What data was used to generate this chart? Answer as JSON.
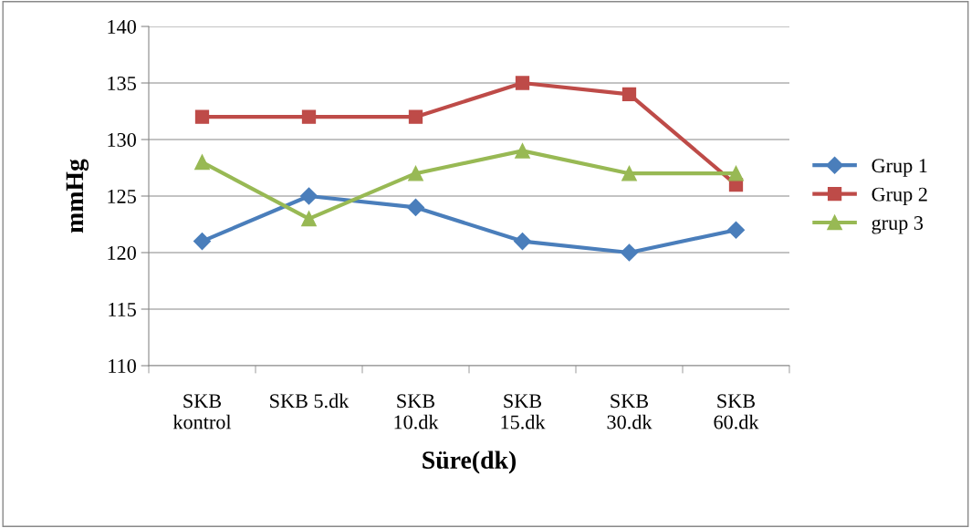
{
  "chart_data": {
    "type": "line",
    "xlabel": "Süre(dk)",
    "ylabel": "mmHg",
    "categories": [
      "SKB\nkontrol",
      "SKB 5.dk",
      "SKB\n10.dk",
      "SKB\n15.dk",
      "SKB\n30.dk",
      "SKB\n60.dk"
    ],
    "series": [
      {
        "name": "Grup 1",
        "color": "#4a7ebb",
        "marker": "diamond",
        "values": [
          121,
          125,
          124,
          121,
          120,
          122
        ]
      },
      {
        "name": "Grup 2",
        "color": "#be4b48",
        "marker": "square",
        "values": [
          132,
          132,
          132,
          135,
          134,
          126
        ]
      },
      {
        "name": "grup 3",
        "color": "#98b954",
        "marker": "triangle",
        "values": [
          128,
          123,
          127,
          129,
          127,
          127
        ]
      }
    ],
    "ylim": [
      110,
      140
    ],
    "yticks": [
      110,
      115,
      120,
      125,
      130,
      135,
      140
    ],
    "grid": "y",
    "legend": "right",
    "line_style": "solid"
  }
}
